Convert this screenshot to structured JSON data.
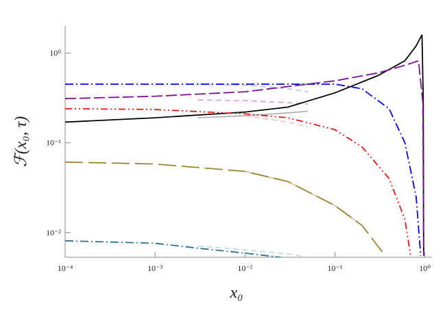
{
  "chart_data": {
    "type": "line",
    "log_x": true,
    "log_y": true,
    "grid": false,
    "xlabel": "x₀",
    "ylabel": "ℱ(x₀, τ)",
    "xlim": [
      0.0001,
      1.2
    ],
    "ylim": [
      0.0053,
      2
    ],
    "xticks": [
      {
        "value": 0.0001,
        "label": "10⁻⁴"
      },
      {
        "value": 0.001,
        "label": "10⁻³"
      },
      {
        "value": 0.01,
        "label": "10⁻²"
      },
      {
        "value": 0.1,
        "label": "10⁻¹"
      },
      {
        "value": 1,
        "label": "10⁰"
      }
    ],
    "yticks": [
      {
        "value": 0.01,
        "label": "10⁻²"
      },
      {
        "value": 0.1,
        "label": "10⁻¹"
      },
      {
        "value": 1,
        "label": "10⁰"
      }
    ],
    "series": [
      {
        "color": "#f1c5c5",
        "dash": "dashed",
        "x": [
          0.01,
          0.03,
          0.05
        ],
        "values": [
          0.2,
          0.17,
          0.15
        ]
      },
      {
        "color": "#b8c8e8",
        "dash": "dashed",
        "x": [
          0.003,
          0.01,
          0.03,
          0.05
        ],
        "values": [
          0.45,
          0.44,
          0.4,
          0.37
        ]
      },
      {
        "color": "#d8a8dc",
        "dash": "dashed",
        "x": [
          0.003,
          0.01,
          0.03,
          0.05
        ],
        "values": [
          0.3,
          0.295,
          0.28,
          0.27
        ]
      },
      {
        "color": "#b0b0b8",
        "dash": "solid",
        "x": [
          0.003,
          0.01,
          0.03,
          0.05
        ],
        "values": [
          0.19,
          0.2,
          0.215,
          0.225
        ]
      },
      {
        "color": "#c8d8e4",
        "dash": "dashed",
        "x": [
          0.003,
          0.01,
          0.03,
          0.05
        ],
        "values": [
          0.0071,
          0.0064,
          0.0058,
          0.0053
        ]
      },
      {
        "color": "#d8c8a0",
        "dash": "solid",
        "x": [
          0.01,
          0.03,
          0.1,
          0.2
        ],
        "values": [
          0.048,
          0.037,
          0.02,
          0.012
        ]
      },
      {
        "color": "#000000",
        "dash": "solid",
        "x": [
          0.0001,
          0.001,
          0.01,
          0.03,
          0.1,
          0.3,
          0.6,
          0.8,
          0.93,
          0.96,
          0.97
        ],
        "values": [
          0.17,
          0.19,
          0.22,
          0.25,
          0.36,
          0.56,
          0.82,
          1.2,
          1.6,
          0.3,
          0.0055
        ]
      },
      {
        "color": "#0000ee",
        "dash": "dashdot",
        "x": [
          0.0001,
          0.01,
          0.1,
          0.2,
          0.4,
          0.6,
          0.8,
          0.9
        ],
        "values": [
          0.45,
          0.45,
          0.45,
          0.4,
          0.24,
          0.1,
          0.025,
          0.0055
        ]
      },
      {
        "color": "#7a1090",
        "dash": "longdash",
        "x": [
          0.0001,
          0.001,
          0.01,
          0.1,
          0.3,
          0.6,
          0.85,
          0.95,
          0.97
        ],
        "values": [
          0.31,
          0.33,
          0.37,
          0.49,
          0.6,
          0.73,
          0.82,
          0.28,
          0.0055
        ]
      },
      {
        "color": "#ee1111",
        "dash": "dashdotdot",
        "x": [
          0.0001,
          0.001,
          0.01,
          0.03,
          0.1,
          0.2,
          0.4,
          0.6,
          0.7
        ],
        "values": [
          0.24,
          0.235,
          0.21,
          0.19,
          0.14,
          0.09,
          0.04,
          0.014,
          0.0053
        ]
      },
      {
        "color": "#9a8430",
        "dash": "verylongdash",
        "x": [
          0.0001,
          0.001,
          0.01,
          0.03,
          0.1,
          0.2,
          0.35
        ],
        "values": [
          0.061,
          0.058,
          0.048,
          0.037,
          0.02,
          0.012,
          0.0058
        ]
      },
      {
        "color": "#2a7090",
        "dash": "dashdot",
        "x": [
          0.0001,
          0.001,
          0.003,
          0.01,
          0.025
        ],
        "values": [
          0.0081,
          0.0076,
          0.0067,
          0.0059,
          0.0053
        ]
      }
    ]
  }
}
